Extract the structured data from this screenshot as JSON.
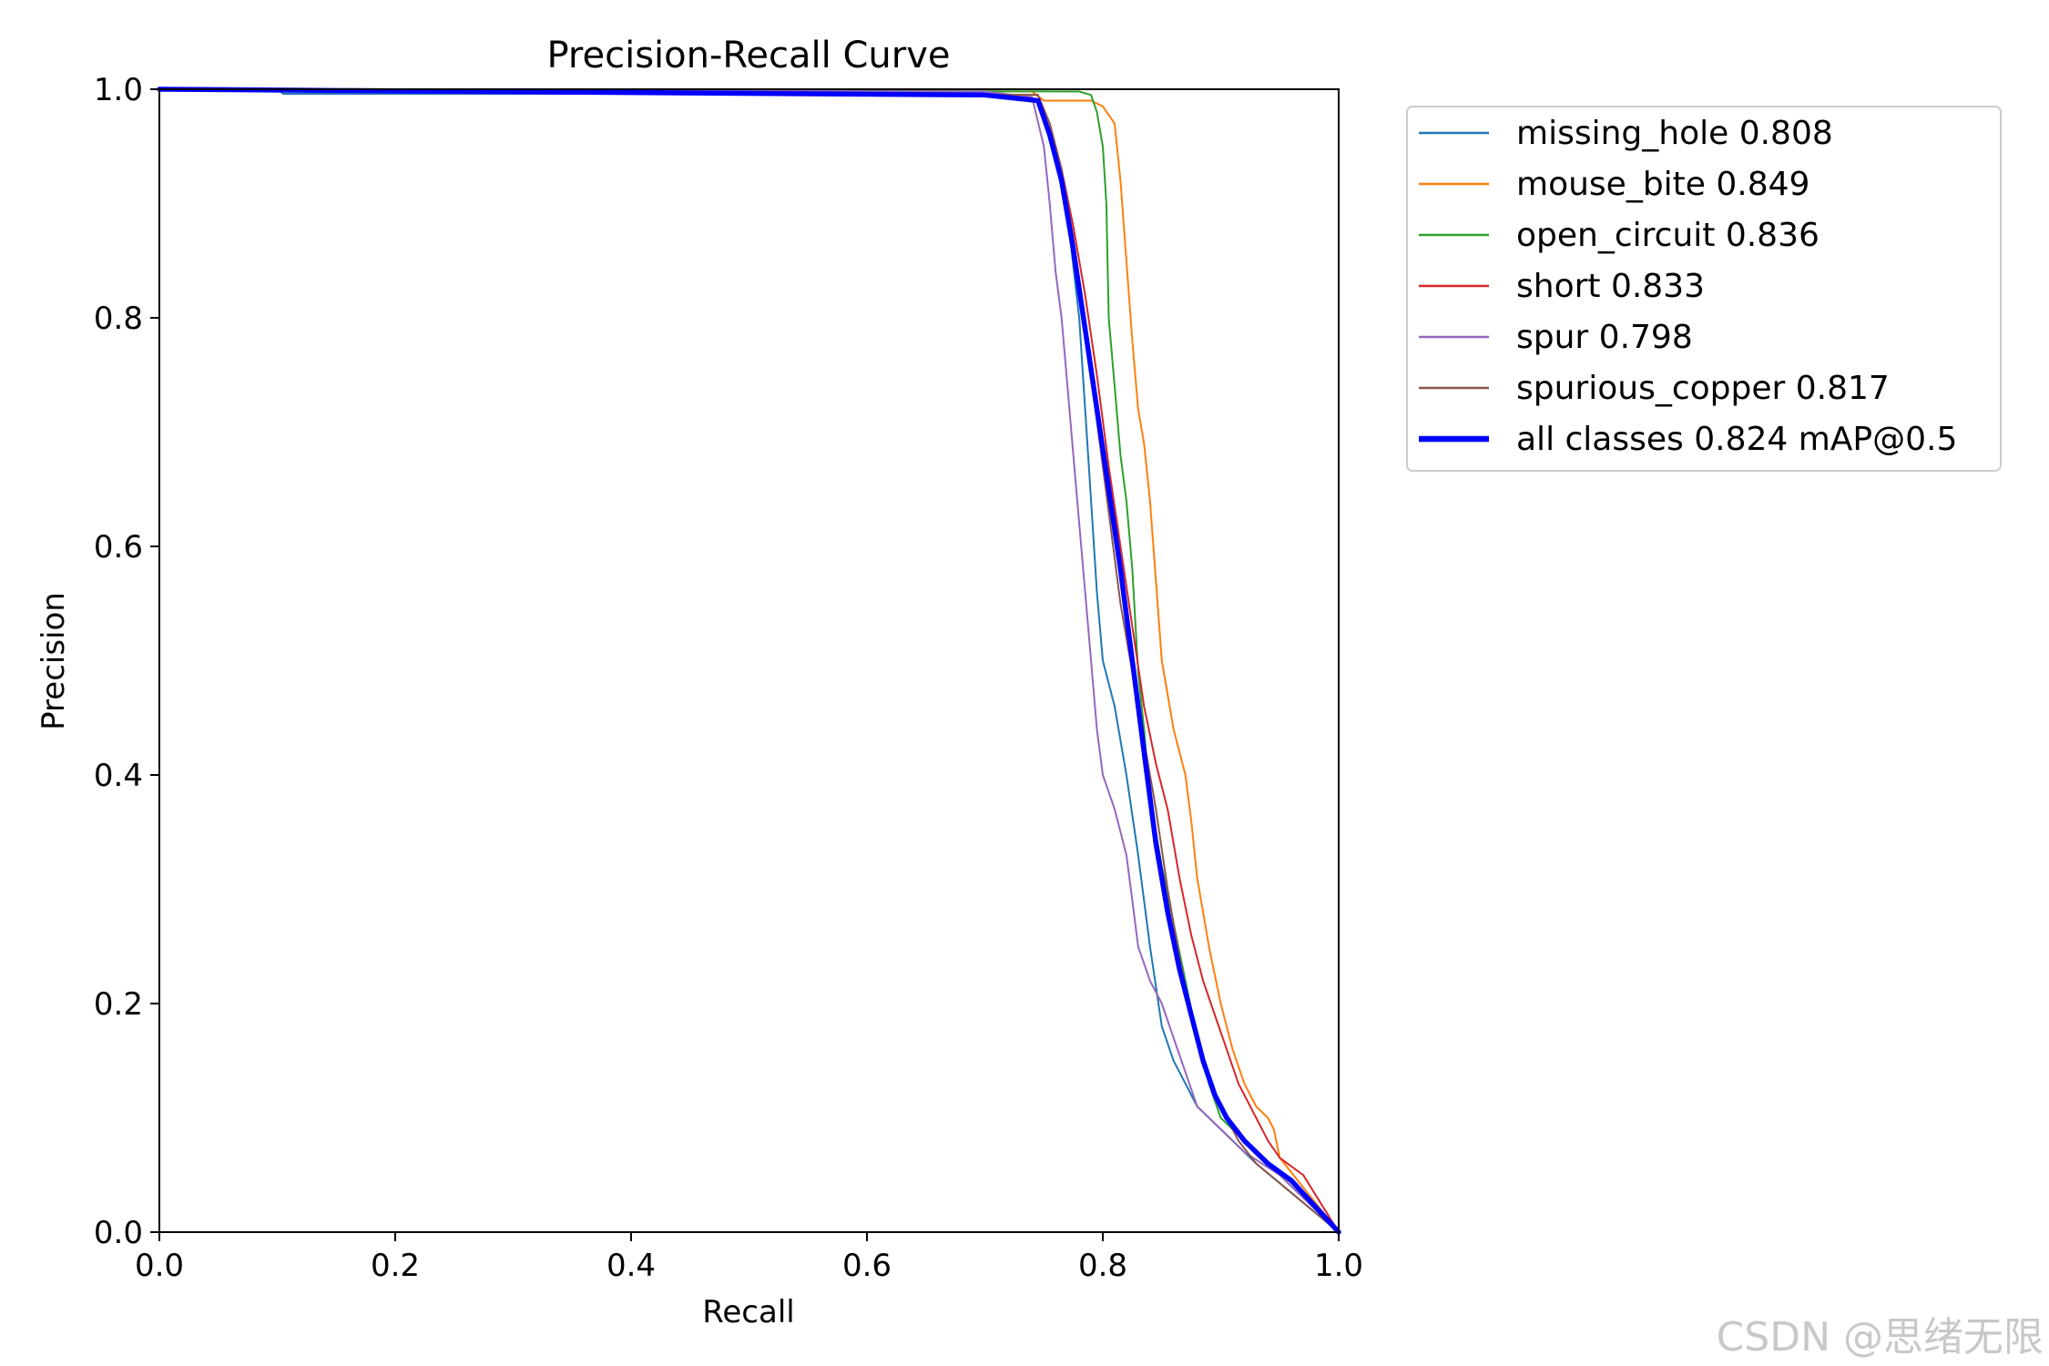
{
  "chart_data": {
    "type": "line",
    "title": "Precision-Recall Curve",
    "xlabel": "Recall",
    "ylabel": "Precision",
    "xlim": [
      0,
      1
    ],
    "ylim": [
      0,
      1
    ],
    "xticks": [
      "0.0",
      "0.2",
      "0.4",
      "0.6",
      "0.8",
      "1.0"
    ],
    "yticks": [
      "0.0",
      "0.2",
      "0.4",
      "0.6",
      "0.8",
      "1.0"
    ],
    "legend_position": "outside-upper-right",
    "grid": false,
    "series": [
      {
        "name": "missing_hole 0.808",
        "color": "#1f77b4",
        "points": [
          [
            0,
            1.0
          ],
          [
            0.1,
            1.0
          ],
          [
            0.105,
            0.996
          ],
          [
            0.7,
            0.996
          ],
          [
            0.745,
            0.99
          ],
          [
            0.76,
            0.95
          ],
          [
            0.77,
            0.89
          ],
          [
            0.78,
            0.8
          ],
          [
            0.785,
            0.72
          ],
          [
            0.79,
            0.64
          ],
          [
            0.795,
            0.56
          ],
          [
            0.8,
            0.5
          ],
          [
            0.81,
            0.46
          ],
          [
            0.82,
            0.4
          ],
          [
            0.83,
            0.33
          ],
          [
            0.84,
            0.25
          ],
          [
            0.85,
            0.18
          ],
          [
            0.86,
            0.15
          ],
          [
            0.87,
            0.13
          ],
          [
            0.88,
            0.11
          ],
          [
            0.9,
            0.09
          ],
          [
            0.93,
            0.06
          ],
          [
            1.0,
            0.0
          ]
        ]
      },
      {
        "name": "mouse_bite 0.849",
        "color": "#ff7f0e",
        "points": [
          [
            0,
            1.0
          ],
          [
            0.74,
            0.998
          ],
          [
            0.75,
            0.99
          ],
          [
            0.79,
            0.99
          ],
          [
            0.8,
            0.985
          ],
          [
            0.81,
            0.97
          ],
          [
            0.815,
            0.92
          ],
          [
            0.82,
            0.85
          ],
          [
            0.825,
            0.78
          ],
          [
            0.83,
            0.72
          ],
          [
            0.835,
            0.69
          ],
          [
            0.84,
            0.64
          ],
          [
            0.845,
            0.57
          ],
          [
            0.85,
            0.5
          ],
          [
            0.86,
            0.44
          ],
          [
            0.87,
            0.4
          ],
          [
            0.875,
            0.36
          ],
          [
            0.88,
            0.31
          ],
          [
            0.885,
            0.28
          ],
          [
            0.89,
            0.25
          ],
          [
            0.9,
            0.2
          ],
          [
            0.91,
            0.16
          ],
          [
            0.92,
            0.13
          ],
          [
            0.93,
            0.11
          ],
          [
            0.94,
            0.1
          ],
          [
            0.945,
            0.09
          ],
          [
            0.95,
            0.065
          ],
          [
            1.0,
            0.0
          ]
        ]
      },
      {
        "name": "open_circuit 0.836",
        "color": "#2ca02c",
        "points": [
          [
            0,
            1.0
          ],
          [
            0.78,
            0.998
          ],
          [
            0.79,
            0.995
          ],
          [
            0.795,
            0.98
          ],
          [
            0.8,
            0.95
          ],
          [
            0.803,
            0.9
          ],
          [
            0.805,
            0.8
          ],
          [
            0.81,
            0.74
          ],
          [
            0.815,
            0.68
          ],
          [
            0.82,
            0.64
          ],
          [
            0.825,
            0.58
          ],
          [
            0.83,
            0.49
          ],
          [
            0.835,
            0.44
          ],
          [
            0.84,
            0.38
          ],
          [
            0.85,
            0.32
          ],
          [
            0.86,
            0.27
          ],
          [
            0.87,
            0.22
          ],
          [
            0.88,
            0.17
          ],
          [
            0.89,
            0.13
          ],
          [
            0.9,
            0.1
          ],
          [
            0.92,
            0.08
          ],
          [
            0.95,
            0.05
          ],
          [
            1.0,
            0.0
          ]
        ]
      },
      {
        "name": "short 0.833",
        "color": "#d62728",
        "points": [
          [
            0,
            1.0
          ],
          [
            0.745,
            0.995
          ],
          [
            0.755,
            0.97
          ],
          [
            0.765,
            0.93
          ],
          [
            0.775,
            0.88
          ],
          [
            0.785,
            0.82
          ],
          [
            0.795,
            0.75
          ],
          [
            0.805,
            0.67
          ],
          [
            0.815,
            0.6
          ],
          [
            0.825,
            0.53
          ],
          [
            0.835,
            0.46
          ],
          [
            0.845,
            0.41
          ],
          [
            0.855,
            0.37
          ],
          [
            0.865,
            0.31
          ],
          [
            0.875,
            0.26
          ],
          [
            0.885,
            0.22
          ],
          [
            0.895,
            0.19
          ],
          [
            0.905,
            0.16
          ],
          [
            0.915,
            0.13
          ],
          [
            0.93,
            0.1
          ],
          [
            0.94,
            0.08
          ],
          [
            0.95,
            0.065
          ],
          [
            0.97,
            0.05
          ],
          [
            1.0,
            0.0
          ]
        ]
      },
      {
        "name": "spur 0.798",
        "color": "#9467bd",
        "points": [
          [
            0,
            1.0
          ],
          [
            0.7,
            0.998
          ],
          [
            0.74,
            0.993
          ],
          [
            0.75,
            0.95
          ],
          [
            0.755,
            0.9
          ],
          [
            0.76,
            0.84
          ],
          [
            0.765,
            0.8
          ],
          [
            0.77,
            0.74
          ],
          [
            0.775,
            0.68
          ],
          [
            0.78,
            0.62
          ],
          [
            0.785,
            0.56
          ],
          [
            0.79,
            0.5
          ],
          [
            0.795,
            0.44
          ],
          [
            0.8,
            0.4
          ],
          [
            0.81,
            0.37
          ],
          [
            0.82,
            0.33
          ],
          [
            0.825,
            0.29
          ],
          [
            0.83,
            0.25
          ],
          [
            0.84,
            0.22
          ],
          [
            0.85,
            0.2
          ],
          [
            0.86,
            0.17
          ],
          [
            0.87,
            0.14
          ],
          [
            0.88,
            0.11
          ],
          [
            0.9,
            0.09
          ],
          [
            0.92,
            0.07
          ],
          [
            0.95,
            0.05
          ],
          [
            1.0,
            0.0
          ]
        ]
      },
      {
        "name": "spurious_copper 0.817",
        "color": "#8c564b",
        "points": [
          [
            0,
            1.0
          ],
          [
            0.745,
            0.995
          ],
          [
            0.755,
            0.97
          ],
          [
            0.765,
            0.93
          ],
          [
            0.775,
            0.87
          ],
          [
            0.785,
            0.79
          ],
          [
            0.795,
            0.71
          ],
          [
            0.805,
            0.63
          ],
          [
            0.815,
            0.55
          ],
          [
            0.825,
            0.49
          ],
          [
            0.835,
            0.43
          ],
          [
            0.845,
            0.37
          ],
          [
            0.855,
            0.3
          ],
          [
            0.865,
            0.24
          ],
          [
            0.875,
            0.19
          ],
          [
            0.885,
            0.15
          ],
          [
            0.895,
            0.12
          ],
          [
            0.905,
            0.1
          ],
          [
            0.915,
            0.08
          ],
          [
            0.93,
            0.06
          ],
          [
            1.0,
            0.0
          ]
        ]
      },
      {
        "name": "all classes 0.824 mAP@0.5",
        "color": "#0000ff",
        "width": 5.5,
        "points": [
          [
            0,
            1.0
          ],
          [
            0.7,
            0.995
          ],
          [
            0.745,
            0.99
          ],
          [
            0.755,
            0.96
          ],
          [
            0.765,
            0.92
          ],
          [
            0.775,
            0.86
          ],
          [
            0.785,
            0.79
          ],
          [
            0.795,
            0.72
          ],
          [
            0.805,
            0.65
          ],
          [
            0.815,
            0.58
          ],
          [
            0.825,
            0.5
          ],
          [
            0.835,
            0.42
          ],
          [
            0.845,
            0.34
          ],
          [
            0.855,
            0.28
          ],
          [
            0.865,
            0.23
          ],
          [
            0.875,
            0.19
          ],
          [
            0.885,
            0.15
          ],
          [
            0.895,
            0.12
          ],
          [
            0.905,
            0.1
          ],
          [
            0.92,
            0.08
          ],
          [
            0.94,
            0.06
          ],
          [
            0.96,
            0.045
          ],
          [
            1.0,
            0.0
          ]
        ]
      }
    ]
  },
  "watermark": "CSDN @思绪无限"
}
